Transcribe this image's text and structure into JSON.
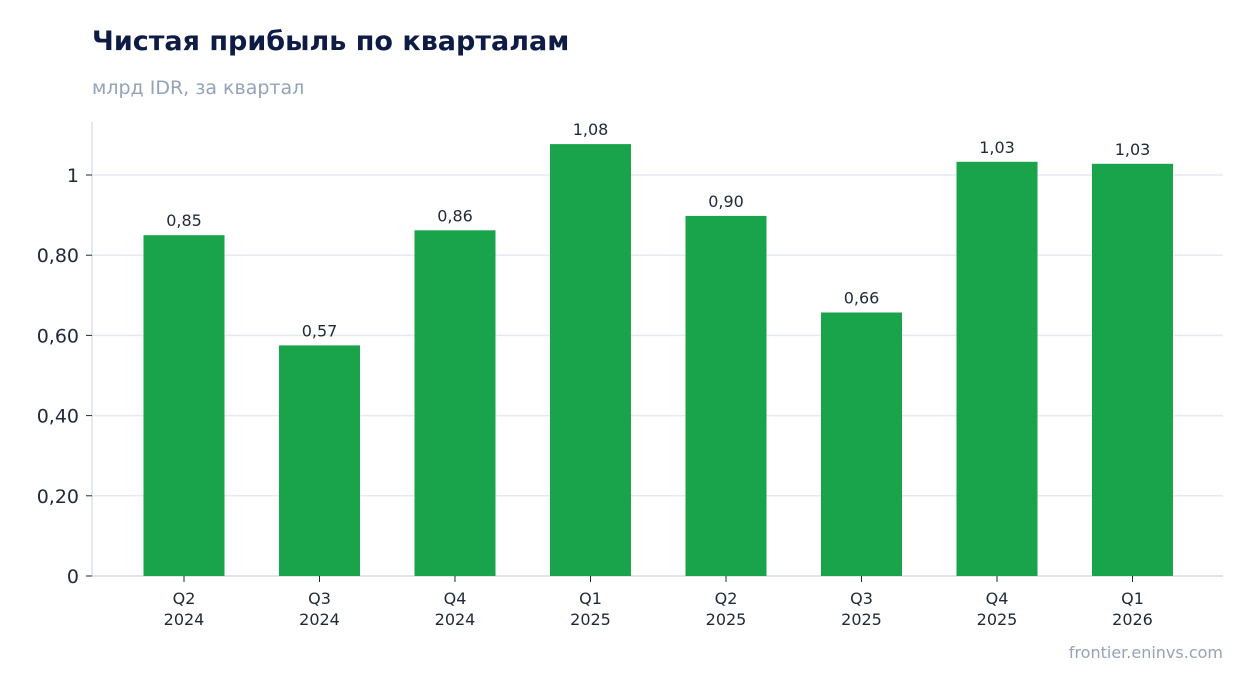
{
  "chart_data": {
    "type": "bar",
    "title": "Чистая прибыль по кварталам",
    "subtitle": "млрд IDR, за квартал",
    "source": "frontier.eninvs.com",
    "categories": [
      [
        "Q2",
        "2024"
      ],
      [
        "Q3",
        "2024"
      ],
      [
        "Q4",
        "2024"
      ],
      [
        "Q1",
        "2025"
      ],
      [
        "Q2",
        "2025"
      ],
      [
        "Q3",
        "2025"
      ],
      [
        "Q4",
        "2025"
      ],
      [
        "Q1",
        "2026"
      ]
    ],
    "values": [
      0.85,
      0.575,
      0.862,
      1.077,
      0.898,
      0.657,
      1.033,
      1.028
    ],
    "data_labels": [
      "0,85",
      "0,57",
      "0,86",
      "1,08",
      "0,90",
      "0,66",
      "1,03",
      "1,03"
    ],
    "yticks": [
      {
        "value": 0,
        "label": "0"
      },
      {
        "value": 0.2,
        "label": "0,20"
      },
      {
        "value": 0.4,
        "label": "0,40"
      },
      {
        "value": 0.6,
        "label": "0,60"
      },
      {
        "value": 0.8,
        "label": "0,80"
      },
      {
        "value": 1,
        "label": "1"
      }
    ],
    "ylim": [
      0,
      1.13
    ],
    "grid": true,
    "colors": {
      "bar": "#19a34a",
      "grid": "#e5e9f0",
      "axis": "#cbd5e1",
      "title": "#0d1b45",
      "muted": "#94a3b8",
      "text": "#1f2937"
    }
  }
}
